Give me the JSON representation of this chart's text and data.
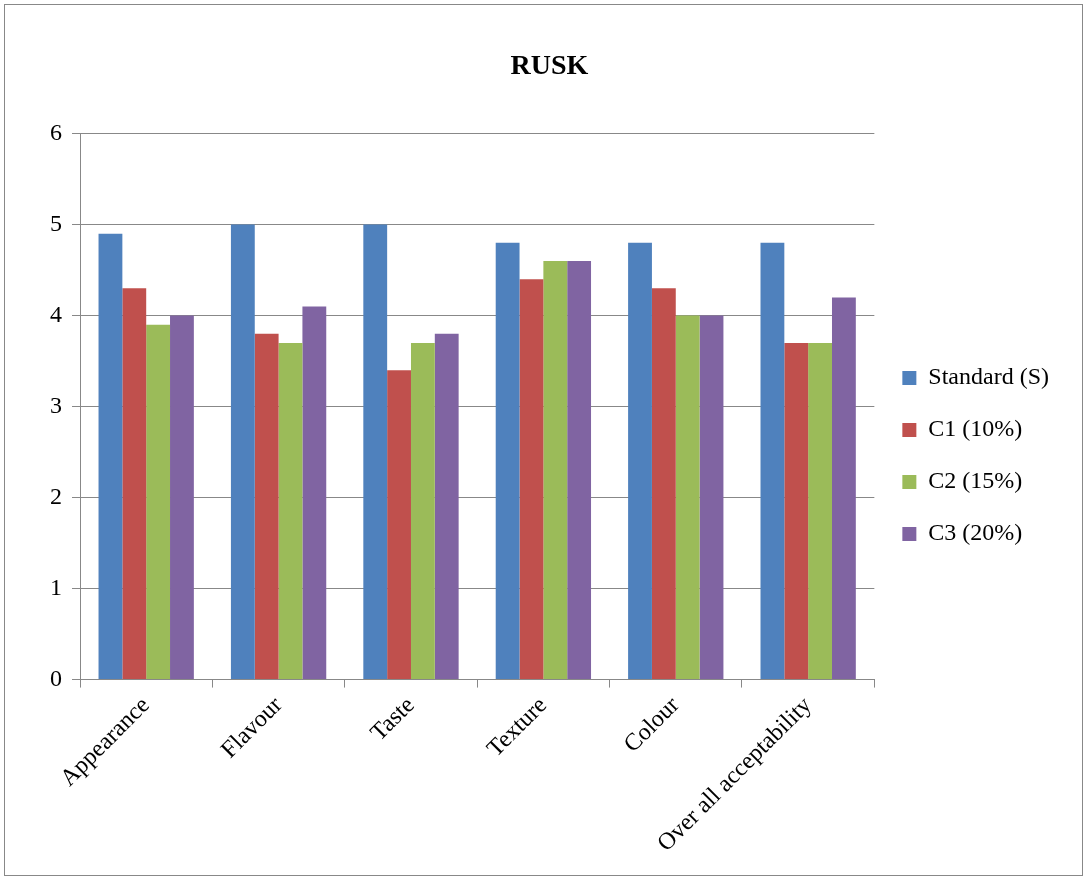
{
  "chart_data": {
    "type": "bar",
    "title": "RUSK",
    "categories": [
      "Appearance",
      "Flavour",
      "Taste",
      "Texture",
      "Colour",
      "Over all acceptability"
    ],
    "series": [
      {
        "name": "Standard (S)",
        "color": "#4f81bd",
        "values": [
          4.9,
          5.0,
          5.0,
          4.8,
          4.8,
          4.8
        ]
      },
      {
        "name": "C1 (10%)",
        "color": "#c0504d",
        "values": [
          4.3,
          3.8,
          3.4,
          4.4,
          4.3,
          3.7
        ]
      },
      {
        "name": "C2 (15%)",
        "color": "#9bbb59",
        "values": [
          3.9,
          3.7,
          3.7,
          4.6,
          4.0,
          3.7
        ]
      },
      {
        "name": "C3 (20%)",
        "color": "#8064a2",
        "values": [
          4.0,
          4.1,
          3.8,
          4.6,
          4.0,
          4.2
        ]
      }
    ],
    "ylim": [
      0,
      6
    ],
    "yticks": [
      0,
      1,
      2,
      3,
      4,
      5,
      6
    ],
    "grid": "y",
    "legend": "right"
  }
}
